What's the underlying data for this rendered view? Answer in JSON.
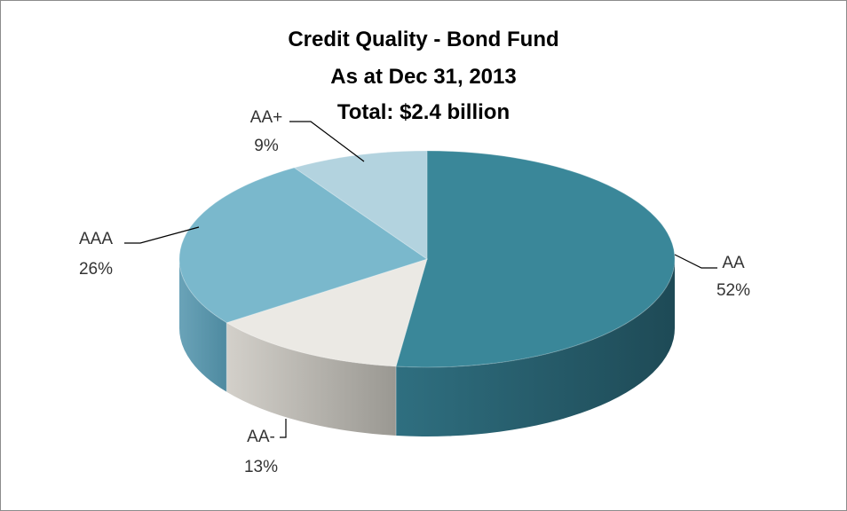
{
  "chart_data": {
    "type": "pie",
    "title_lines": [
      "Credit Quality - Bond Fund",
      "As at Dec 31, 2013",
      "Total: $2.4 billion"
    ],
    "slices": [
      {
        "label": "AA",
        "value": 52,
        "pct_label": "52%",
        "color": "#3a8799",
        "side_dark": "#1e4a56",
        "side_light": "#2f6f80"
      },
      {
        "label": "AA-",
        "value": 13,
        "pct_label": "13%",
        "color": "#ebe9e4",
        "side_dark": "#9a9892",
        "side_light": "#d3d0ca"
      },
      {
        "label": "AAA",
        "value": 26,
        "pct_label": "26%",
        "color": "#7ab8cc",
        "side_dark": "#4e8aa0",
        "side_light": "#6aa3b8"
      },
      {
        "label": "AA+",
        "value": 9,
        "pct_label": "9%",
        "color": "#b3d3df",
        "side_dark": "#7ea5b3",
        "side_light": "#9ec3d0"
      }
    ]
  }
}
